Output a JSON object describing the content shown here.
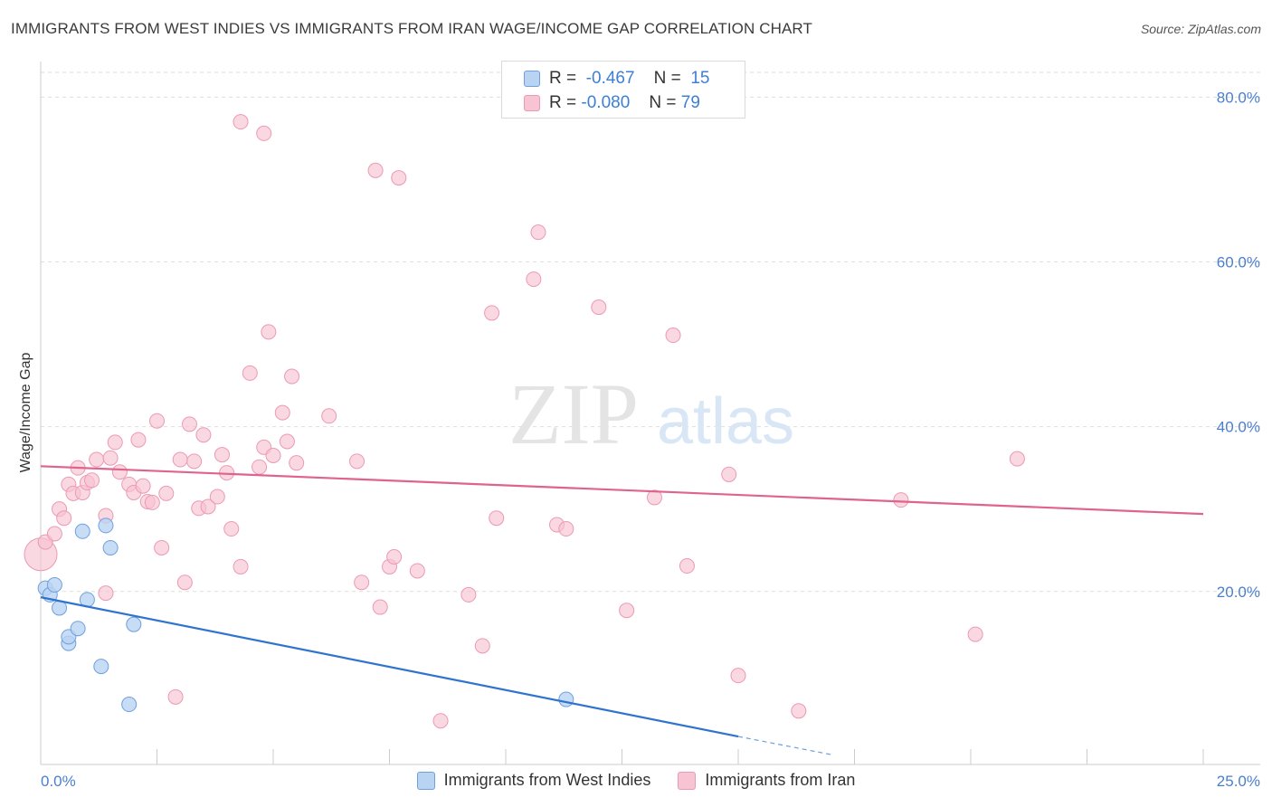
{
  "title": "IMMIGRANTS FROM WEST INDIES VS IMMIGRANTS FROM IRAN WAGE/INCOME GAP CORRELATION CHART",
  "source": "Source: ZipAtlas.com",
  "watermark": {
    "zip": "ZIP",
    "atlas": "atlas"
  },
  "legend": {
    "rows": [
      {
        "r_label": "R =",
        "r_value": "-0.467",
        "n_label": "N =",
        "n_value": "15"
      },
      {
        "r_label": "R =",
        "r_value": "-0.080",
        "n_label": "N =",
        "n_value": "79"
      }
    ]
  },
  "bottom_legend": [
    "Immigrants from West Indies",
    "Immigrants from Iran"
  ],
  "colors": {
    "west_indies_fill": "#b9d3f3",
    "west_indies_stroke": "#6fa0dd",
    "west_indies_line": "#2f73d0",
    "iran_fill": "#f8c3d3",
    "iran_stroke": "#ec99b4",
    "iran_line": "#e0628f",
    "tick_text": "#4a7fcf",
    "grid": "#dddddd"
  },
  "chart_data": {
    "type": "scatter",
    "title": "IMMIGRANTS FROM WEST INDIES VS IMMIGRANTS FROM IRAN WAGE/INCOME GAP CORRELATION CHART",
    "xlabel": "",
    "ylabel": "Wage/Income Gap",
    "xlim": [
      0,
      25
    ],
    "ylim": [
      -1,
      83
    ],
    "x_tick_labels": [
      "0.0%",
      "25.0%"
    ],
    "y_ticks": [
      20,
      40,
      60,
      80
    ],
    "y_tick_labels": [
      "20.0%",
      "40.0%",
      "60.0%",
      "80.0%"
    ],
    "grid": true,
    "series": [
      {
        "name": "Immigrants from West Indies",
        "points": [
          [
            0.1,
            20.4
          ],
          [
            0.2,
            19.6
          ],
          [
            0.3,
            20.8
          ],
          [
            0.4,
            18.0
          ],
          [
            0.6,
            13.7
          ],
          [
            0.6,
            14.5
          ],
          [
            0.8,
            15.5
          ],
          [
            0.9,
            27.3
          ],
          [
            1.0,
            19.0
          ],
          [
            1.3,
            10.9
          ],
          [
            1.4,
            28.0
          ],
          [
            1.5,
            25.3
          ],
          [
            1.9,
            6.3
          ],
          [
            2.0,
            16.0
          ],
          [
            11.3,
            6.9
          ]
        ],
        "trend": {
          "x0": 0.0,
          "y0": 19.3,
          "x1": 15.0,
          "y1": 2.4,
          "dash_x1": 17.0,
          "dash_y1": 0.2
        }
      },
      {
        "name": "Immigrants from Iran",
        "points": [
          [
            0.0,
            24.5
          ],
          [
            0.1,
            26.0
          ],
          [
            0.3,
            27.0
          ],
          [
            0.4,
            30.0
          ],
          [
            0.5,
            28.9
          ],
          [
            0.6,
            33.0
          ],
          [
            0.7,
            31.9
          ],
          [
            0.8,
            35.0
          ],
          [
            0.9,
            32.0
          ],
          [
            1.0,
            33.2
          ],
          [
            1.1,
            33.5
          ],
          [
            1.2,
            36.0
          ],
          [
            1.4,
            19.8
          ],
          [
            1.4,
            29.2
          ],
          [
            1.5,
            36.2
          ],
          [
            1.6,
            38.1
          ],
          [
            1.7,
            34.5
          ],
          [
            1.9,
            33.0
          ],
          [
            2.0,
            32.0
          ],
          [
            2.1,
            38.4
          ],
          [
            2.2,
            32.8
          ],
          [
            2.3,
            30.9
          ],
          [
            2.4,
            30.8
          ],
          [
            2.5,
            40.7
          ],
          [
            2.6,
            25.3
          ],
          [
            2.7,
            31.9
          ],
          [
            2.9,
            7.2
          ],
          [
            3.0,
            36.0
          ],
          [
            3.1,
            21.1
          ],
          [
            3.2,
            40.3
          ],
          [
            3.3,
            35.8
          ],
          [
            3.4,
            30.1
          ],
          [
            3.5,
            39.0
          ],
          [
            3.6,
            30.3
          ],
          [
            3.8,
            31.5
          ],
          [
            3.9,
            36.6
          ],
          [
            4.0,
            34.4
          ],
          [
            4.1,
            27.6
          ],
          [
            4.3,
            23.0
          ],
          [
            4.3,
            77.0
          ],
          [
            4.5,
            46.5
          ],
          [
            4.7,
            35.1
          ],
          [
            4.8,
            37.5
          ],
          [
            4.8,
            75.6
          ],
          [
            4.9,
            51.5
          ],
          [
            5.0,
            36.5
          ],
          [
            5.2,
            41.7
          ],
          [
            5.3,
            38.2
          ],
          [
            5.4,
            46.1
          ],
          [
            5.5,
            35.6
          ],
          [
            6.2,
            41.3
          ],
          [
            6.8,
            35.8
          ],
          [
            6.9,
            21.1
          ],
          [
            7.2,
            71.1
          ],
          [
            7.3,
            18.1
          ],
          [
            7.5,
            23.0
          ],
          [
            7.6,
            24.2
          ],
          [
            7.7,
            70.2
          ],
          [
            8.1,
            22.5
          ],
          [
            8.6,
            4.3
          ],
          [
            9.2,
            19.6
          ],
          [
            9.5,
            13.4
          ],
          [
            9.7,
            53.8
          ],
          [
            9.8,
            28.9
          ],
          [
            10.6,
            57.9
          ],
          [
            10.7,
            63.6
          ],
          [
            11.1,
            28.1
          ],
          [
            11.3,
            27.6
          ],
          [
            12.0,
            54.5
          ],
          [
            12.6,
            17.7
          ],
          [
            13.2,
            31.4
          ],
          [
            13.6,
            51.1
          ],
          [
            13.9,
            23.1
          ],
          [
            14.8,
            34.2
          ],
          [
            15.0,
            9.8
          ],
          [
            16.3,
            5.5
          ],
          [
            18.5,
            31.1
          ],
          [
            20.1,
            14.8
          ],
          [
            21.0,
            36.1
          ]
        ],
        "trend": {
          "x0": 0.0,
          "y0": 35.2,
          "x1": 25.0,
          "y1": 29.4
        }
      }
    ]
  }
}
